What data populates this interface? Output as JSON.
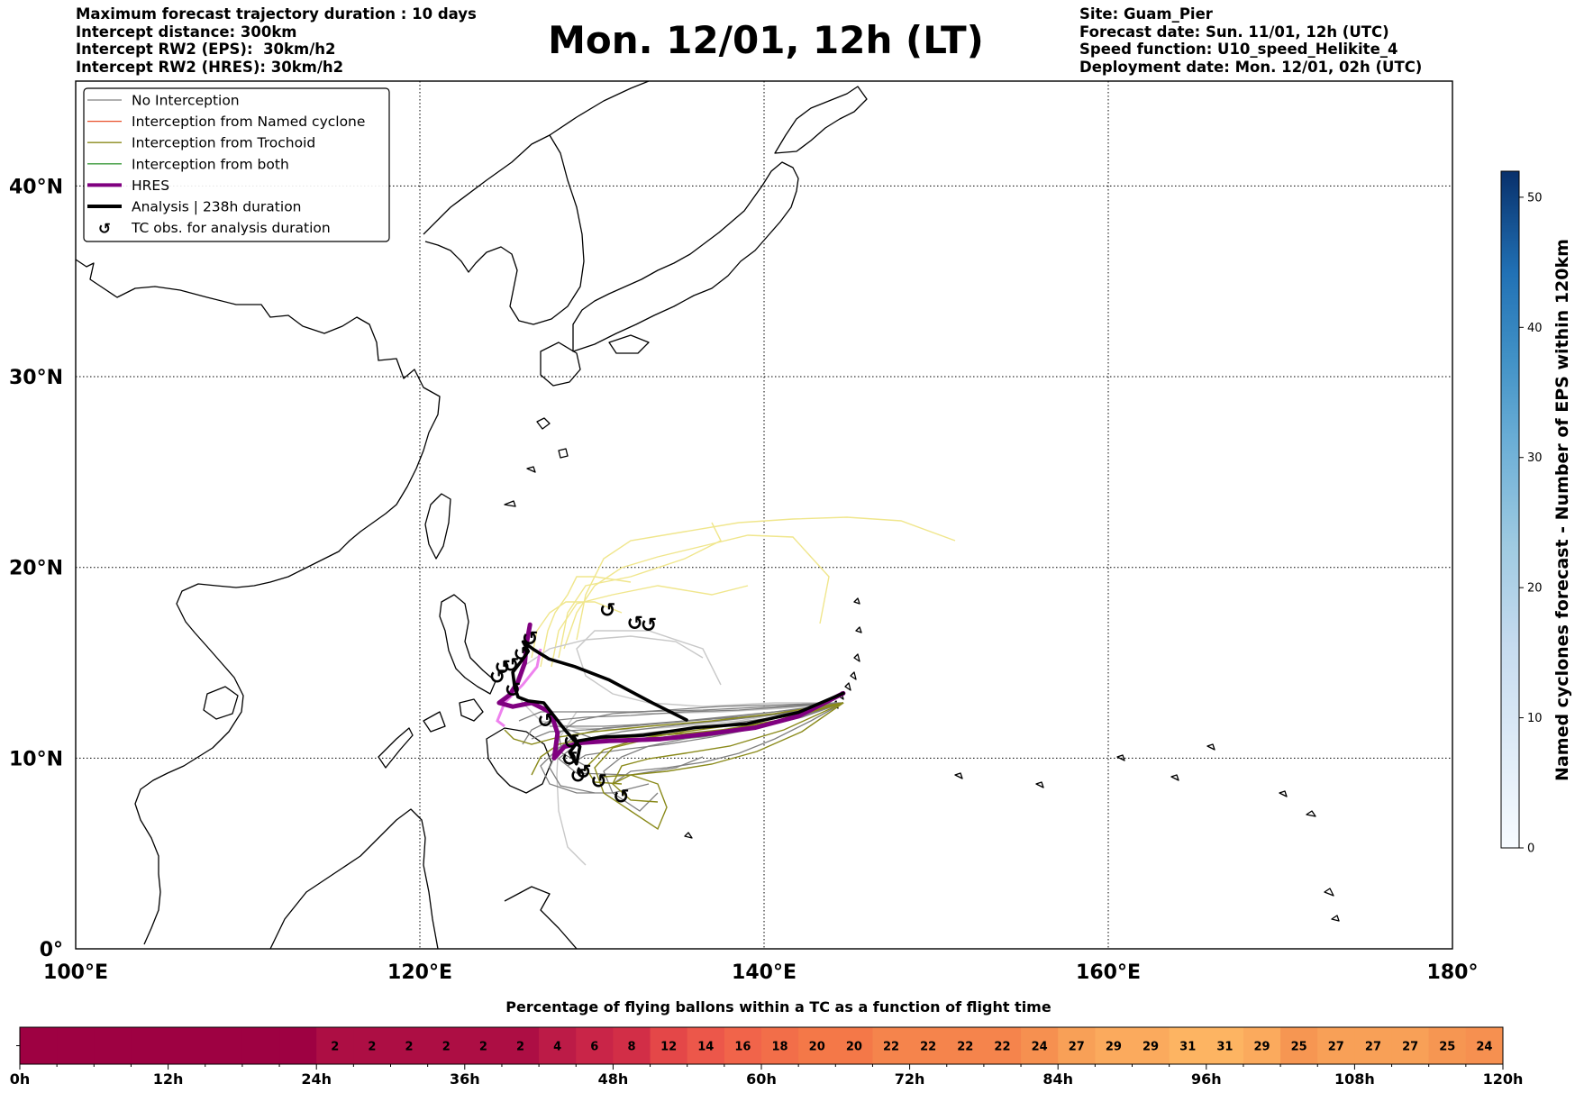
{
  "header": {
    "left": [
      "Maximum forecast trajectory duration : 10 days",
      "Intercept distance: 300km",
      "Intercept RW2 (EPS):  30km/h2",
      "Intercept RW2 (HRES): 30km/h2"
    ],
    "title": "Mon. 12/01, 12h (LT)",
    "right": [
      "Site: Guam_Pier",
      "Forecast date: Sun. 11/01, 12h (UTC)",
      "Speed function: U10_speed_Helikite_4",
      "Deployment date: Mon. 12/01, 02h (UTC)"
    ]
  },
  "legend": {
    "items": [
      {
        "label": "No Interception",
        "color": "#808080",
        "style": "thin"
      },
      {
        "label": "Interception from Named cyclone",
        "color": "#e8502a",
        "style": "thin"
      },
      {
        "label": "Interception from Trochoid",
        "color": "#8a8a1a",
        "style": "thin"
      },
      {
        "label": "Interception from both",
        "color": "#3a9a3a",
        "style": "thin"
      },
      {
        "label": "HRES",
        "color": "#800080",
        "style": "thick"
      },
      {
        "label": "Analysis | 238h duration",
        "color": "#000000",
        "style": "thick"
      },
      {
        "label": "TC obs. for analysis duration",
        "color": "#000000",
        "style": "marker"
      }
    ]
  },
  "chart_data": [
    {
      "type": "map-trajectories",
      "x_axis": {
        "ticks": [
          "100°E",
          "120°E",
          "140°E",
          "160°E",
          "180°"
        ],
        "range_deg": [
          100,
          180
        ]
      },
      "y_axis": {
        "ticks": [
          "0°",
          "10°N",
          "20°N",
          "30°N",
          "40°N"
        ],
        "range_deg": [
          0,
          45.5
        ]
      },
      "grid": true,
      "legend_position": "top-left",
      "launch_site": {
        "lon": 144.6,
        "lat": 13.4
      },
      "analysis_track": [
        [
          144.6,
          13.4
        ],
        [
          142,
          12.4
        ],
        [
          139,
          11.8
        ],
        [
          136,
          11.6
        ],
        [
          133,
          11.2
        ],
        [
          130.5,
          11.1
        ],
        [
          129.2,
          10.9
        ],
        [
          128.7,
          10.3
        ],
        [
          129.1,
          9.7
        ],
        [
          129.3,
          10.6
        ],
        [
          128.5,
          11.4
        ],
        [
          127.8,
          12.2
        ],
        [
          127.2,
          12.9
        ],
        [
          126.3,
          13.0
        ],
        [
          125.7,
          13.2
        ],
        [
          125.5,
          13.8
        ],
        [
          125.4,
          14.5
        ],
        [
          125.9,
          15.1
        ],
        [
          126.3,
          15.6
        ],
        [
          126.0,
          16.1
        ],
        [
          126.6,
          15.7
        ],
        [
          127.5,
          15.2
        ],
        [
          129,
          14.8
        ],
        [
          131,
          14.1
        ],
        [
          133.5,
          12.9
        ],
        [
          135.5,
          12.0
        ]
      ],
      "hres_track": [
        [
          144.6,
          13.4
        ],
        [
          142,
          12.2
        ],
        [
          139.5,
          11.6
        ],
        [
          137,
          11.3
        ],
        [
          134,
          11.0
        ],
        [
          131,
          10.9
        ],
        [
          129.4,
          10.8
        ],
        [
          128.4,
          10.6
        ],
        [
          127.8,
          10.0
        ],
        [
          128.0,
          11.3
        ],
        [
          127.6,
          12.4
        ],
        [
          126.5,
          12.9
        ],
        [
          125.4,
          12.7
        ],
        [
          124.6,
          12.9
        ],
        [
          125.2,
          13.3
        ],
        [
          125.7,
          14.0
        ],
        [
          126.1,
          15.0
        ],
        [
          126.2,
          16.0
        ],
        [
          126.4,
          17.0
        ]
      ],
      "tc_obs_markers": [
        [
          126.4,
          16.3
        ],
        [
          125.9,
          15.5
        ],
        [
          125.3,
          14.9
        ],
        [
          124.8,
          14.8
        ],
        [
          124.5,
          14.3
        ],
        [
          125.4,
          13.6
        ],
        [
          127.3,
          12.0
        ],
        [
          128.8,
          10.9
        ],
        [
          128.7,
          10.0
        ],
        [
          129.2,
          9.1
        ],
        [
          129.5,
          9.3
        ],
        [
          130.4,
          8.8
        ],
        [
          131.7,
          8.0
        ],
        [
          130.9,
          17.8
        ],
        [
          132.5,
          17.1
        ],
        [
          133.3,
          17.0
        ]
      ]
    },
    {
      "type": "colorbar",
      "label": "Named cyclones forecast - Number of EPS within 120km",
      "ticks": [
        0,
        10,
        20,
        30,
        40,
        50
      ],
      "range": [
        0,
        52
      ],
      "colormap": "Blues"
    },
    {
      "type": "bar",
      "title": "Percentage of flying ballons within a TC as a function of flight time",
      "time_ticks": [
        "0h",
        "12h",
        "24h",
        "36h",
        "48h",
        "60h",
        "72h",
        "84h",
        "96h",
        "108h",
        "120h"
      ],
      "segments_per_hour": 3,
      "zero_segments": 8,
      "values": [
        2,
        2,
        2,
        2,
        2,
        2,
        4,
        6,
        8,
        12,
        14,
        16,
        18,
        20,
        20,
        22,
        22,
        22,
        22,
        24,
        27,
        29,
        29,
        31,
        31,
        29,
        25,
        27,
        27,
        27,
        25,
        24
      ]
    }
  ]
}
